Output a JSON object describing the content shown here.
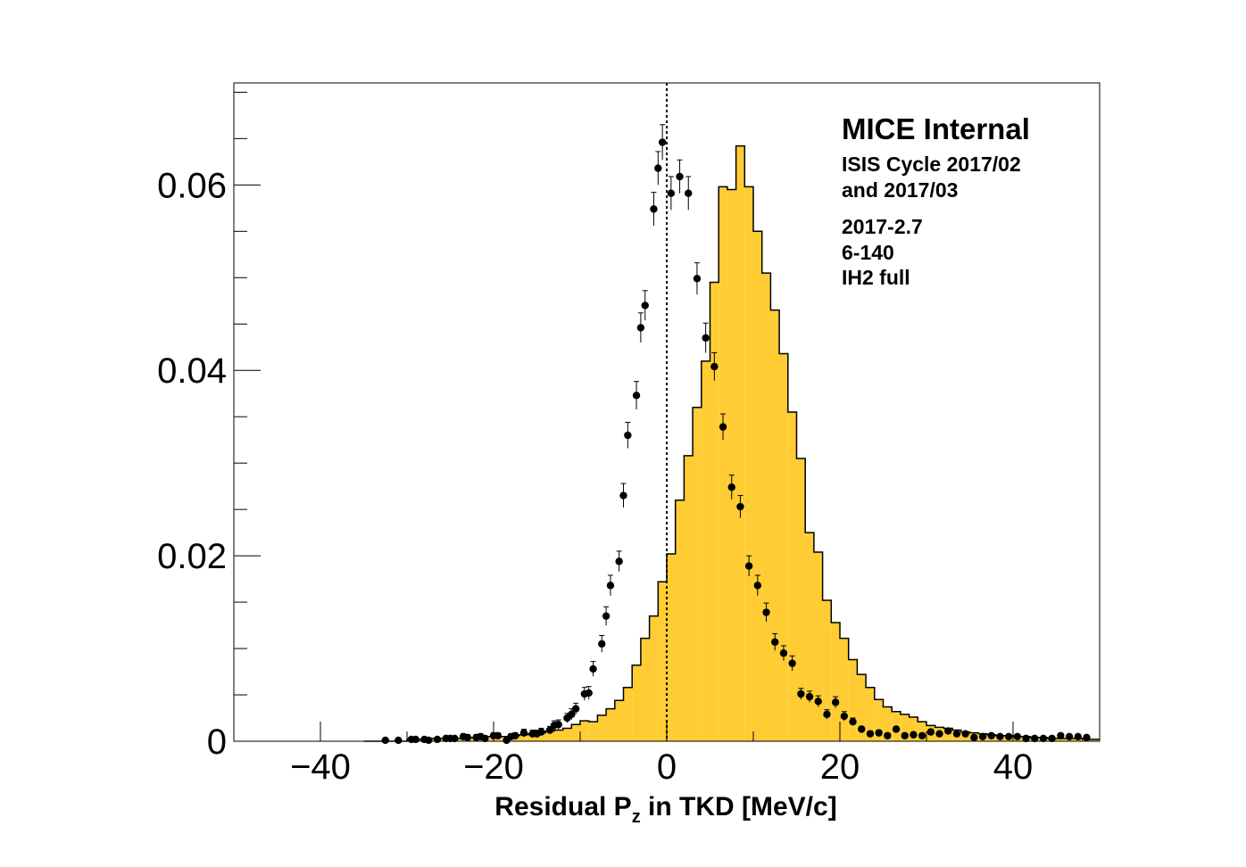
{
  "chart_data": {
    "type": "bar",
    "xlabel": "Residual P",
    "xlabel_subscript": "z",
    "xlabel_suffix": " in TKD [MeV/c]",
    "ylabel": "",
    "xlim": [
      -50,
      50
    ],
    "ylim": [
      0,
      0.071
    ],
    "x_ticks": [
      -40,
      -20,
      0,
      20,
      40
    ],
    "x_tick_labels": [
      "−40",
      "−20",
      "0",
      "20",
      "40"
    ],
    "y_ticks": [
      0,
      0.02,
      0.04,
      0.06
    ],
    "y_tick_labels": [
      "0",
      "0.02",
      "0.04",
      "0.06"
    ],
    "grid": false,
    "reference_line_x": 0,
    "bin_width": 1,
    "annotations": [
      "MICE Internal",
      "ISIS Cycle 2017/02",
      "and 2017/03",
      "2017-2.7",
      "6-140",
      "IH2 full"
    ],
    "series": [
      {
        "kind": "histogram",
        "fill": "#ffcc33",
        "x_start": -35,
        "values": [
          0,
          0,
          0,
          0,
          0,
          0.0002,
          0.0002,
          0.0003,
          0.0003,
          0.0003,
          0.0003,
          0.0003,
          0.0004,
          0.0004,
          0.0005,
          0.0005,
          0.0005,
          0.0006,
          0.0007,
          0.0008,
          0.0009,
          0.0011,
          0.0012,
          0.0014,
          0.0018,
          0.0022,
          0.0021,
          0.0028,
          0.0035,
          0.0044,
          0.0058,
          0.0082,
          0.0111,
          0.0135,
          0.0172,
          0.0202,
          0.026,
          0.0308,
          0.036,
          0.041,
          0.0495,
          0.0598,
          0.0595,
          0.0642,
          0.0598,
          0.055,
          0.0505,
          0.0465,
          0.0418,
          0.0355,
          0.0305,
          0.0225,
          0.0204,
          0.0152,
          0.0128,
          0.0111,
          0.0088,
          0.0072,
          0.0058,
          0.0045,
          0.0037,
          0.0032,
          0.0029,
          0.0026,
          0.0021,
          0.0017,
          0.0015,
          0.0014,
          0.0012,
          0.001,
          0.0009,
          0.0008,
          0.0007,
          0.0006,
          0.0006,
          0.0005,
          0.0005,
          0.0004,
          0.0004,
          0.0003,
          0.0003,
          0.0003,
          0.0003,
          0.0002,
          0.0002
        ]
      },
      {
        "kind": "points",
        "color": "#000000",
        "x": [
          -32.5,
          -31,
          -29.5,
          -29,
          -28,
          -27.5,
          -26.5,
          -25.5,
          -25,
          -24.5,
          -23.5,
          -23,
          -22,
          -21.5,
          -21,
          -20,
          -19.5,
          -18.5,
          -18,
          -17.5,
          -16.5,
          -15.5,
          -15,
          -14.5,
          -13.5,
          -13,
          -12.5,
          -11.5,
          -11,
          -10.5,
          -9.5,
          -9,
          -8.5,
          -7.5,
          -7,
          -6.5,
          -5.5,
          -5,
          -4.5,
          -3.5,
          -3,
          -2.5,
          -1.5,
          -1,
          -0.5,
          0.5,
          1.5,
          2.5,
          3.5,
          4.5,
          5.5,
          6.5,
          7.5,
          8.5,
          9.5,
          10.5,
          11.5,
          12.5,
          13.5,
          14.5,
          15.5,
          16.5,
          17.5,
          18.5,
          19.5,
          20.5,
          21.5,
          22.5,
          23.5,
          24.5,
          25.5,
          26.5,
          27.5,
          28.5,
          29.5,
          30.5,
          31.5,
          32.5,
          33.5,
          34.5,
          35.5,
          36.5,
          37.5,
          38.5,
          39.5,
          40.5,
          41.5,
          42.5,
          43.5,
          44.5,
          45.5,
          46.5,
          47.5,
          48.5
        ],
        "y": [
          0.0001,
          0.0001,
          0.0002,
          0.0002,
          0.0002,
          0.0001,
          0.0002,
          0.0003,
          0.0003,
          0.0003,
          0.0005,
          0.0004,
          0.0004,
          0.0005,
          0.0003,
          0.0006,
          0.0006,
          0.0001,
          0.0005,
          0.0006,
          0.0009,
          0.0008,
          0.0008,
          0.001,
          0.0012,
          0.0017,
          0.0018,
          0.0025,
          0.0029,
          0.0035,
          0.0051,
          0.0052,
          0.0078,
          0.0105,
          0.0135,
          0.0168,
          0.0194,
          0.0265,
          0.033,
          0.0373,
          0.0446,
          0.047,
          0.0574,
          0.0618,
          0.0646,
          0.0591,
          0.0609,
          0.0591,
          0.0499,
          0.0435,
          0.0404,
          0.0339,
          0.0274,
          0.0253,
          0.0189,
          0.0168,
          0.0139,
          0.0107,
          0.0095,
          0.0084,
          0.0051,
          0.0048,
          0.0043,
          0.0029,
          0.0042,
          0.0027,
          0.0021,
          0.0013,
          0.0008,
          0.0009,
          0.0006,
          0.0013,
          0.0006,
          0.0007,
          0.0006,
          0.001,
          0.0008,
          0.0011,
          0.0008,
          0.0008,
          0.0004,
          0.0005,
          0.0006,
          0.0005,
          0.0005,
          0.0005,
          0.0003,
          0.0003,
          0.0003,
          0.0003,
          0.0006,
          0.0005,
          0.0005,
          0.0004
        ],
        "errors": [
          0.0002,
          0.0002,
          0.0002,
          0.0002,
          0.0002,
          0.0002,
          0.0002,
          0.0002,
          0.0002,
          0.0002,
          0.0003,
          0.0003,
          0.0003,
          0.0003,
          0.0003,
          0.0003,
          0.0003,
          0.0002,
          0.0003,
          0.0003,
          0.0004,
          0.0004,
          0.0004,
          0.0004,
          0.0004,
          0.0005,
          0.0005,
          0.0005,
          0.0006,
          0.0006,
          0.0007,
          0.0007,
          0.0008,
          0.0009,
          0.001,
          0.0011,
          0.0011,
          0.0013,
          0.0014,
          0.0015,
          0.0016,
          0.0016,
          0.0018,
          0.0018,
          0.0019,
          0.0018,
          0.0018,
          0.0018,
          0.0017,
          0.0016,
          0.0015,
          0.0014,
          0.0013,
          0.0012,
          0.0011,
          0.0011,
          0.001,
          0.0009,
          0.0008,
          0.0008,
          0.0006,
          0.0006,
          0.0006,
          0.0005,
          0.0006,
          0.0005,
          0.0004,
          0.0003,
          0.0003,
          0.0003,
          0.0002,
          0.0003,
          0.0002,
          0.0002,
          0.0002,
          0.0003,
          0.0002,
          0.0003,
          0.0002,
          0.0002,
          0.0002,
          0.0002,
          0.0002,
          0.0002,
          0.0002,
          0.0002,
          0.0002,
          0.0002,
          0.0002,
          0.0002,
          0.0002,
          0.0002,
          0.0002,
          0.0002
        ]
      }
    ]
  }
}
